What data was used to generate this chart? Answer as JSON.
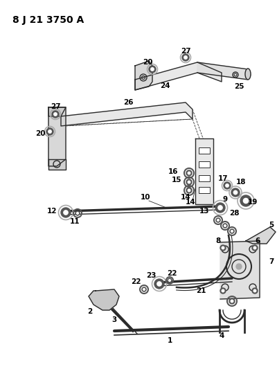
{
  "title": "8 J 21 3750 A",
  "bg_color": "#ffffff",
  "line_color": "#2a2a2a",
  "text_color": "#000000",
  "title_fontsize": 10,
  "label_fontsize": 7.5,
  "fig_width": 4.0,
  "fig_height": 5.33,
  "dpi": 100
}
